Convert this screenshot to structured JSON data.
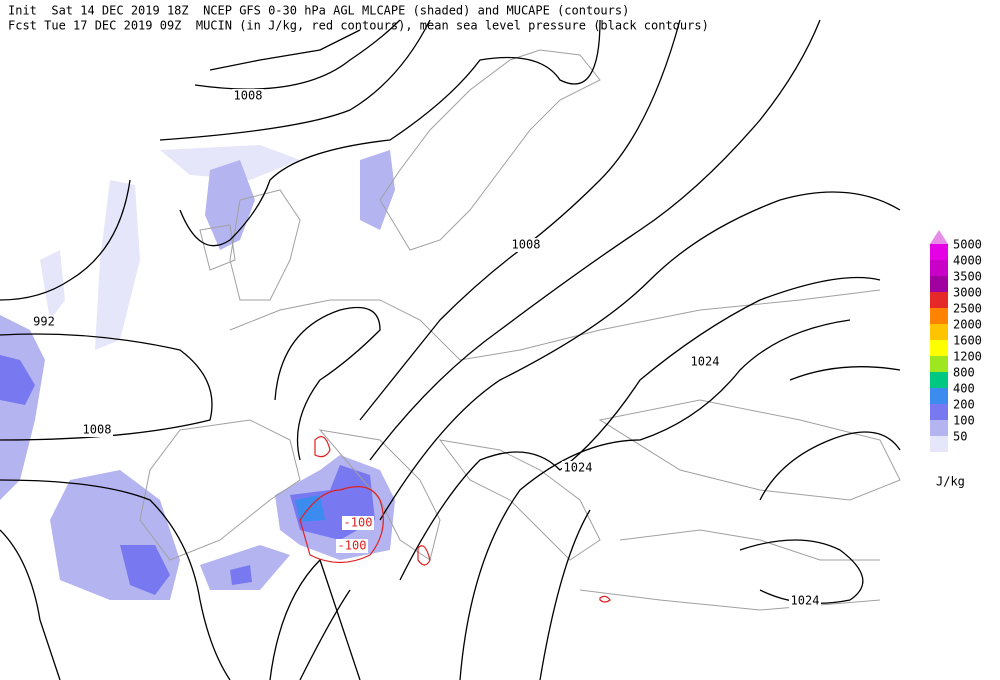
{
  "header": {
    "line1": "Init  Sat 14 DEC 2019 18Z  NCEP GFS 0-30 hPa AGL MLCAPE (shaded) and MUCAPE (contours)",
    "line2": "Fcst Tue 17 DEC 2019 09Z  MUCIN (in J/kg, red contours), mean sea level pressure (black contours)"
  },
  "contour_labels": [
    "1008",
    "1008",
    "992",
    "1008",
    "1024",
    "1024",
    "1024",
    "-100",
    "-100"
  ],
  "legend": {
    "levels": [
      {
        "label": "5000",
        "color": "#e600e6"
      },
      {
        "label": "4000",
        "color": "#c800c8"
      },
      {
        "label": "3500",
        "color": "#a000a0"
      },
      {
        "label": "3000",
        "color": "#e62828"
      },
      {
        "label": "2500",
        "color": "#ff8200"
      },
      {
        "label": "2000",
        "color": "#ffc400"
      },
      {
        "label": "1600",
        "color": "#ffff00"
      },
      {
        "label": "1200",
        "color": "#9ee61e"
      },
      {
        "label": "800",
        "color": "#00c882"
      },
      {
        "label": "400",
        "color": "#3c8cf0"
      },
      {
        "label": "200",
        "color": "#7878f0"
      },
      {
        "label": "100",
        "color": "#b4b4f0"
      },
      {
        "label": "50",
        "color": "#e6e6fa"
      }
    ],
    "top_color": "#e68ce6",
    "unit": "J/kg"
  }
}
